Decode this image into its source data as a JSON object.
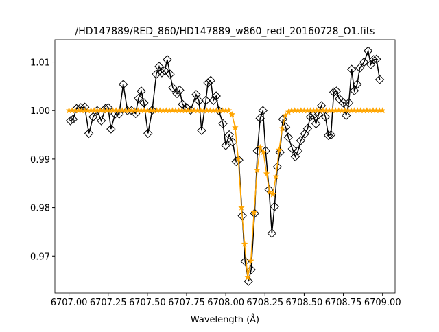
{
  "chart_data": {
    "type": "line",
    "title": "/HD147889/RED_860/HD147889_w860_redl_20160728_O1.fits",
    "x_label": "Wavelength (Å)",
    "xlim": [
      6706.91,
      6709.08
    ],
    "ylim": [
      0.9624,
      1.0146
    ],
    "xticks": [
      {
        "value": 6707,
        "label": "6707.00"
      },
      6707.25,
      {
        "value": 6707.5,
        "label": "6707.50"
      },
      6707.75,
      {
        "value": 6708,
        "label": "6708.00"
      },
      6708.25,
      {
        "value": 6708.5,
        "label": "6708.50"
      },
      6708.75,
      {
        "value": 6709,
        "label": "6709.00"
      }
    ],
    "yticks": [
      0.97,
      0.98,
      0.99,
      {
        "value": 1.0,
        "label": "1.00"
      },
      1.01
    ],
    "series": [
      {
        "color": "#000000",
        "marker": "diamond",
        "x": [
          6707.009,
          6707.026,
          6707.048,
          6707.075,
          6707.101,
          6707.127,
          6707.154,
          6707.18,
          6707.206,
          6707.232,
          6707.25,
          6707.268,
          6707.294,
          6707.32,
          6707.346,
          6707.373,
          6707.399,
          6707.425,
          6707.443,
          6707.461,
          6707.478,
          6707.504,
          6707.531,
          6707.557,
          6707.575,
          6707.592,
          6707.61,
          6707.627,
          6707.645,
          6707.662,
          6707.689,
          6707.706,
          6707.724,
          6707.75,
          6707.776,
          6707.811,
          6707.829,
          6707.846,
          6707.873,
          6707.886,
          6707.904,
          6707.921,
          6707.939,
          6707.956,
          6707.982,
          6708.0,
          6708.022,
          6708.044,
          6708.066,
          6708.083,
          6708.105,
          6708.123,
          6708.145,
          6708.162,
          6708.184,
          6708.202,
          6708.219,
          6708.237,
          6708.254,
          6708.276,
          6708.294,
          6708.311,
          6708.329,
          6708.346,
          6708.364,
          6708.382,
          6708.399,
          6708.425,
          6708.443,
          6708.461,
          6708.478,
          6708.504,
          6708.522,
          6708.539,
          6708.557,
          6708.575,
          6708.592,
          6708.61,
          6708.636,
          6708.654,
          6708.671,
          6708.689,
          6708.706,
          6708.724,
          6708.75,
          6708.768,
          6708.785,
          6708.803,
          6708.82,
          6708.838,
          6708.855,
          6708.882,
          6708.908,
          6708.925,
          6708.943,
          6708.961,
          6708.982
        ],
        "values": [
          0.9979,
          0.9982,
          1.0004,
          1.0006,
          1.0007,
          0.9953,
          0.9987,
          1.0,
          0.9979,
          1.0004,
          1.0006,
          0.9962,
          0.9993,
          0.9993,
          1.0054,
          1.0,
          1.0,
          0.9994,
          1.0025,
          1.004,
          1.0016,
          0.9953,
          1.0001,
          1.0075,
          1.0091,
          1.0078,
          1.0082,
          1.0105,
          1.0075,
          1.0047,
          1.0035,
          1.0042,
          1.0013,
          1.0006,
          1.0001,
          1.0033,
          1.002,
          0.9959,
          1.0021,
          1.0057,
          1.0062,
          1.0021,
          1.003,
          1.0,
          0.9973,
          0.9928,
          0.995,
          0.9935,
          0.9895,
          0.9898,
          0.9783,
          0.9689,
          0.9648,
          0.9672,
          0.9788,
          0.9917,
          0.9984,
          1.0,
          0.9917,
          0.9837,
          0.9747,
          0.9802,
          0.9884,
          0.9914,
          0.9982,
          0.9966,
          0.9945,
          0.9921,
          0.9905,
          0.9917,
          0.9938,
          0.9952,
          0.9963,
          0.9987,
          0.999,
          0.9973,
          0.9992,
          1.001,
          0.9987,
          0.9949,
          0.995,
          1.0038,
          1.004,
          1.0024,
          1.0016,
          0.999,
          1.0016,
          1.0085,
          1.0041,
          1.0054,
          1.0088,
          1.01,
          1.0123,
          1.0095,
          1.0105,
          1.0106,
          1.0064
        ]
      },
      {
        "color": "#ffa500",
        "marker": "star",
        "x": [
          6707,
          6707.02,
          6707.04,
          6707.06,
          6707.08,
          6707.1,
          6707.12,
          6707.14,
          6707.16,
          6707.18,
          6707.2,
          6707.22,
          6707.24,
          6707.26,
          6707.28,
          6707.3,
          6707.32,
          6707.34,
          6707.36,
          6707.38,
          6707.4,
          6707.42,
          6707.44,
          6707.46,
          6707.48,
          6707.5,
          6707.52,
          6707.54,
          6707.56,
          6707.58,
          6707.6,
          6707.62,
          6707.64,
          6707.66,
          6707.68,
          6707.7,
          6707.72,
          6707.74,
          6707.76,
          6707.78,
          6707.8,
          6707.82,
          6707.84,
          6707.86,
          6707.88,
          6707.9,
          6707.92,
          6707.94,
          6707.96,
          6707.98,
          6708,
          6708.02,
          6708.04,
          6708.06,
          6708.08,
          6708.1,
          6708.12,
          6708.14,
          6708.16,
          6708.18,
          6708.2,
          6708.22,
          6708.24,
          6708.26,
          6708.28,
          6708.3,
          6708.32,
          6708.34,
          6708.36,
          6708.38,
          6708.4,
          6708.42,
          6708.44,
          6708.46,
          6708.48,
          6708.5,
          6708.52,
          6708.54,
          6708.56,
          6708.58,
          6708.6,
          6708.62,
          6708.64,
          6708.66,
          6708.68,
          6708.7,
          6708.72,
          6708.74,
          6708.76,
          6708.78,
          6708.8,
          6708.82,
          6708.84,
          6708.86,
          6708.88,
          6708.9,
          6708.92,
          6708.94,
          6708.96,
          6708.98,
          6709
        ],
        "values": [
          1,
          1,
          1,
          1,
          1,
          1,
          1,
          1,
          1,
          1,
          1,
          1,
          1,
          1,
          1,
          1,
          1,
          1,
          1,
          1,
          1,
          1,
          1,
          1,
          1,
          1,
          1,
          1,
          1,
          1,
          1,
          1,
          1,
          1,
          1,
          1,
          1,
          1,
          1,
          1,
          1,
          1,
          1,
          1,
          1,
          1,
          1,
          1,
          1,
          1,
          1,
          1,
          0.9992,
          0.9965,
          0.99,
          0.98,
          0.9725,
          0.9656,
          0.969,
          0.979,
          0.9877,
          0.9924,
          0.9914,
          0.987,
          0.9832,
          0.9827,
          0.9864,
          0.9919,
          0.9963,
          0.999,
          0.9997,
          1,
          1,
          1,
          1,
          1,
          1,
          1,
          1,
          1,
          1,
          1,
          1,
          1,
          1,
          1,
          1,
          1,
          1,
          1,
          1,
          1,
          1,
          1,
          1,
          1,
          1,
          1,
          1,
          1,
          1
        ]
      }
    ]
  }
}
